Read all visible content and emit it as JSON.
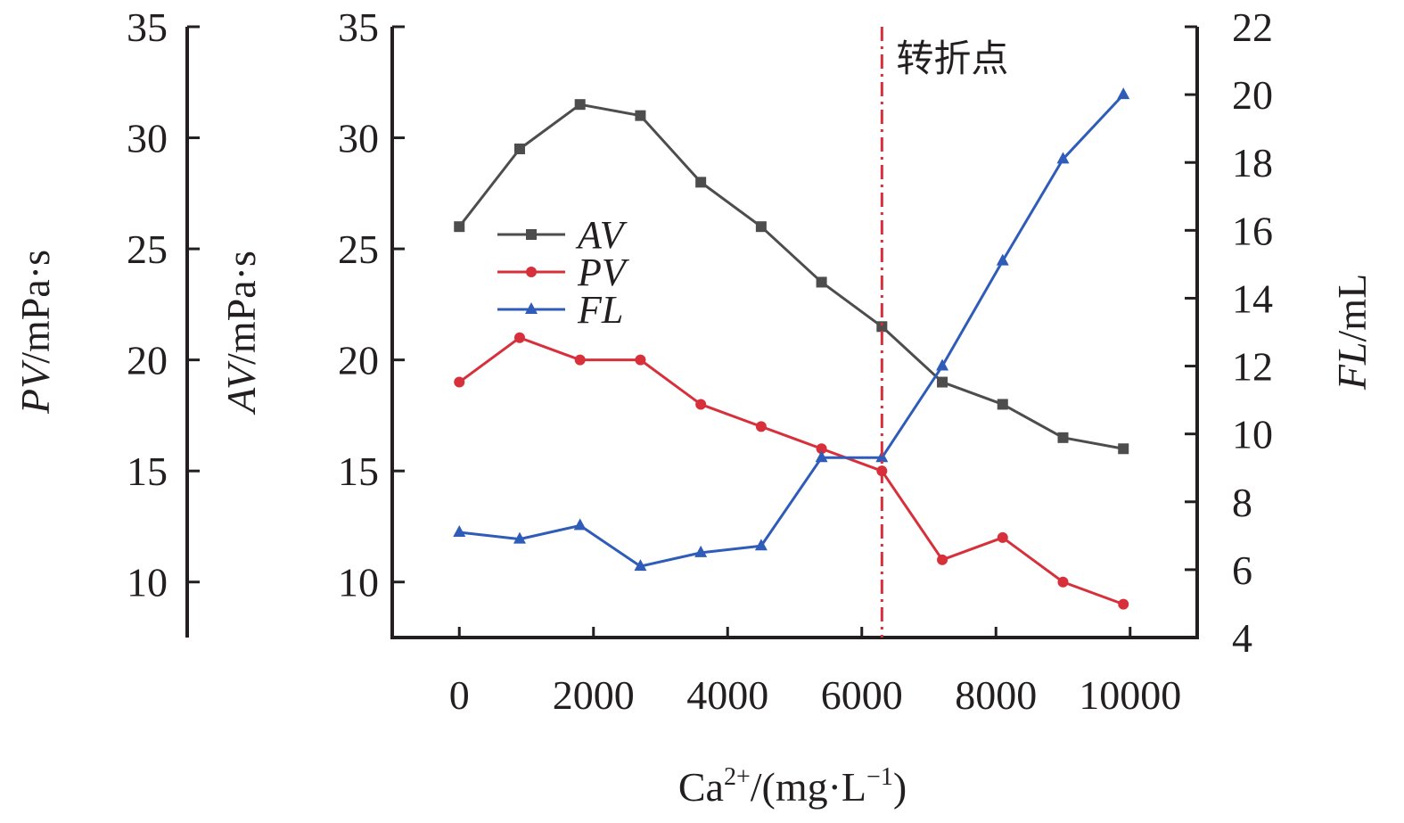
{
  "chart_data": {
    "type": "line",
    "xlabel": {
      "base": "Ca",
      "sup": "2+",
      "rest": "/(mg·L",
      "sup2": "−1",
      "end": ")"
    },
    "x_ticks": [
      "0",
      "2000",
      "4000",
      "6000",
      "8000",
      "10000"
    ],
    "x_tick_values": [
      0,
      2000,
      4000,
      6000,
      8000,
      10000
    ],
    "xlim": [
      -1000,
      11000
    ],
    "x": [
      0,
      900,
      1800,
      2700,
      3600,
      4500,
      5400,
      6300,
      7200,
      8100,
      9000,
      9900
    ],
    "axes": {
      "pv": {
        "label_italic": "PV",
        "label_rest": "/mPa·s",
        "ticks": [
          "10",
          "15",
          "20",
          "25",
          "30",
          "35"
        ],
        "ylim": [
          7.5,
          35
        ]
      },
      "av": {
        "label_italic": "AV",
        "label_rest": "/mPa·s",
        "ticks": [
          "10",
          "15",
          "20",
          "25",
          "30",
          "35"
        ],
        "ylim": [
          7.5,
          35
        ]
      },
      "fl": {
        "label_italic": "FL",
        "label_rest": "/mL",
        "ticks": [
          "4",
          "6",
          "8",
          "10",
          "12",
          "14",
          "16",
          "18",
          "20",
          "22"
        ],
        "ylim": [
          4,
          22
        ]
      }
    },
    "series": [
      {
        "name": "AV",
        "axis": "av",
        "color": "#4d4d4d",
        "marker": "square",
        "values": [
          26,
          29.5,
          31.5,
          31,
          28,
          26,
          23.5,
          21.5,
          19,
          18,
          16.5,
          16
        ]
      },
      {
        "name": "PV",
        "axis": "pv",
        "color": "#d7303b",
        "marker": "circle",
        "values": [
          19,
          21,
          20,
          20,
          18,
          17,
          16,
          15,
          11,
          12,
          10,
          9
        ]
      },
      {
        "name": "FL",
        "axis": "fl",
        "color": "#2e5cb8",
        "marker": "triangle",
        "values": [
          7.1,
          6.9,
          7.3,
          6.1,
          6.5,
          6.7,
          9.3,
          9.3,
          12,
          15.1,
          18.1,
          20
        ]
      }
    ],
    "annotation": {
      "text": "转折点",
      "x": 6300,
      "color": "#d7303b"
    },
    "legend_position": "center-left",
    "grid": false
  }
}
